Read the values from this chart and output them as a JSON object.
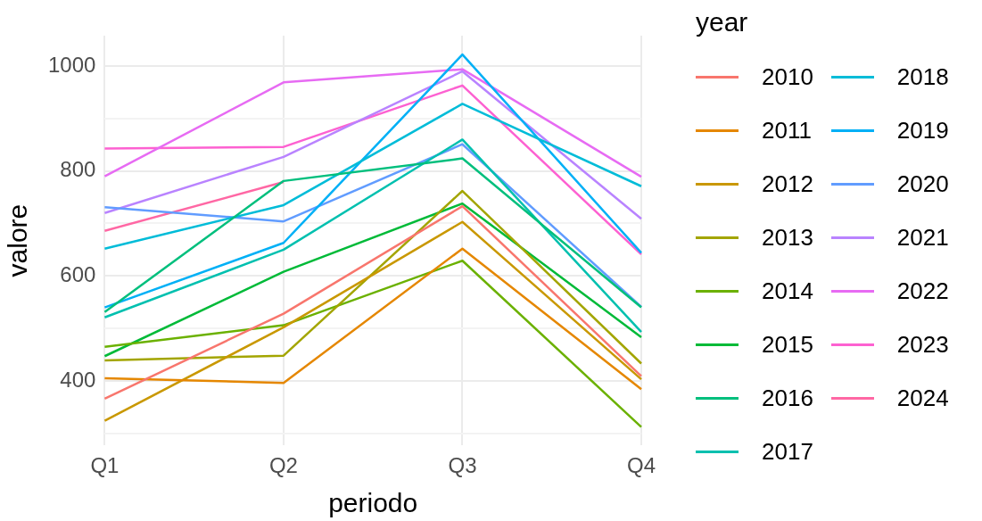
{
  "chart_data": {
    "type": "line",
    "xlabel": "periodo",
    "ylabel": "valore",
    "legend_title": "year",
    "categories": [
      "Q1",
      "Q2",
      "Q3",
      "Q4"
    ],
    "ylim": [
      277,
      1058
    ],
    "yticks": [
      {
        "value": 300,
        "label": null
      },
      400,
      {
        "value": 500,
        "label": null
      },
      600,
      {
        "value": 700,
        "label": null
      },
      800,
      {
        "value": 900,
        "label": null
      },
      1000
    ],
    "grid": true,
    "legend": "right",
    "marker": "none",
    "line_style": "solid",
    "series": [
      {
        "name": "2010",
        "color": "#f8766d",
        "values": [
          366,
          528,
          733,
          409
        ]
      },
      {
        "name": "2011",
        "color": "#e58700",
        "values": [
          405,
          396,
          652,
          384
        ]
      },
      {
        "name": "2012",
        "color": "#c99800",
        "values": [
          324,
          502,
          703,
          403
        ]
      },
      {
        "name": "2013",
        "color": "#a3a500",
        "values": [
          439,
          448,
          762,
          433
        ]
      },
      {
        "name": "2014",
        "color": "#6bb100",
        "values": [
          465,
          506,
          629,
          312
        ]
      },
      {
        "name": "2015",
        "color": "#00ba38",
        "values": [
          447,
          608,
          738,
          483
        ]
      },
      {
        "name": "2016",
        "color": "#00bf7d",
        "values": [
          531,
          781,
          824,
          540
        ]
      },
      {
        "name": "2017",
        "color": "#00c0af",
        "values": [
          521,
          650,
          860,
          493
        ]
      },
      {
        "name": "2018",
        "color": "#00bcd8",
        "values": [
          652,
          735,
          928,
          771
        ]
      },
      {
        "name": "2019",
        "color": "#00b0f6",
        "values": [
          540,
          663,
          1022,
          644
        ]
      },
      {
        "name": "2020",
        "color": "#619cff",
        "values": [
          731,
          704,
          851,
          541
        ]
      },
      {
        "name": "2021",
        "color": "#b983ff",
        "values": [
          720,
          827,
          990,
          709
        ]
      },
      {
        "name": "2022",
        "color": "#e76bf3",
        "values": [
          790,
          969,
          994,
          789
        ]
      },
      {
        "name": "2023",
        "color": "#fd61d1",
        "values": [
          843,
          846,
          963,
          641
        ]
      },
      {
        "name": "2024",
        "color": "#ff67a4",
        "values": [
          686,
          779,
          null,
          null
        ]
      }
    ]
  }
}
